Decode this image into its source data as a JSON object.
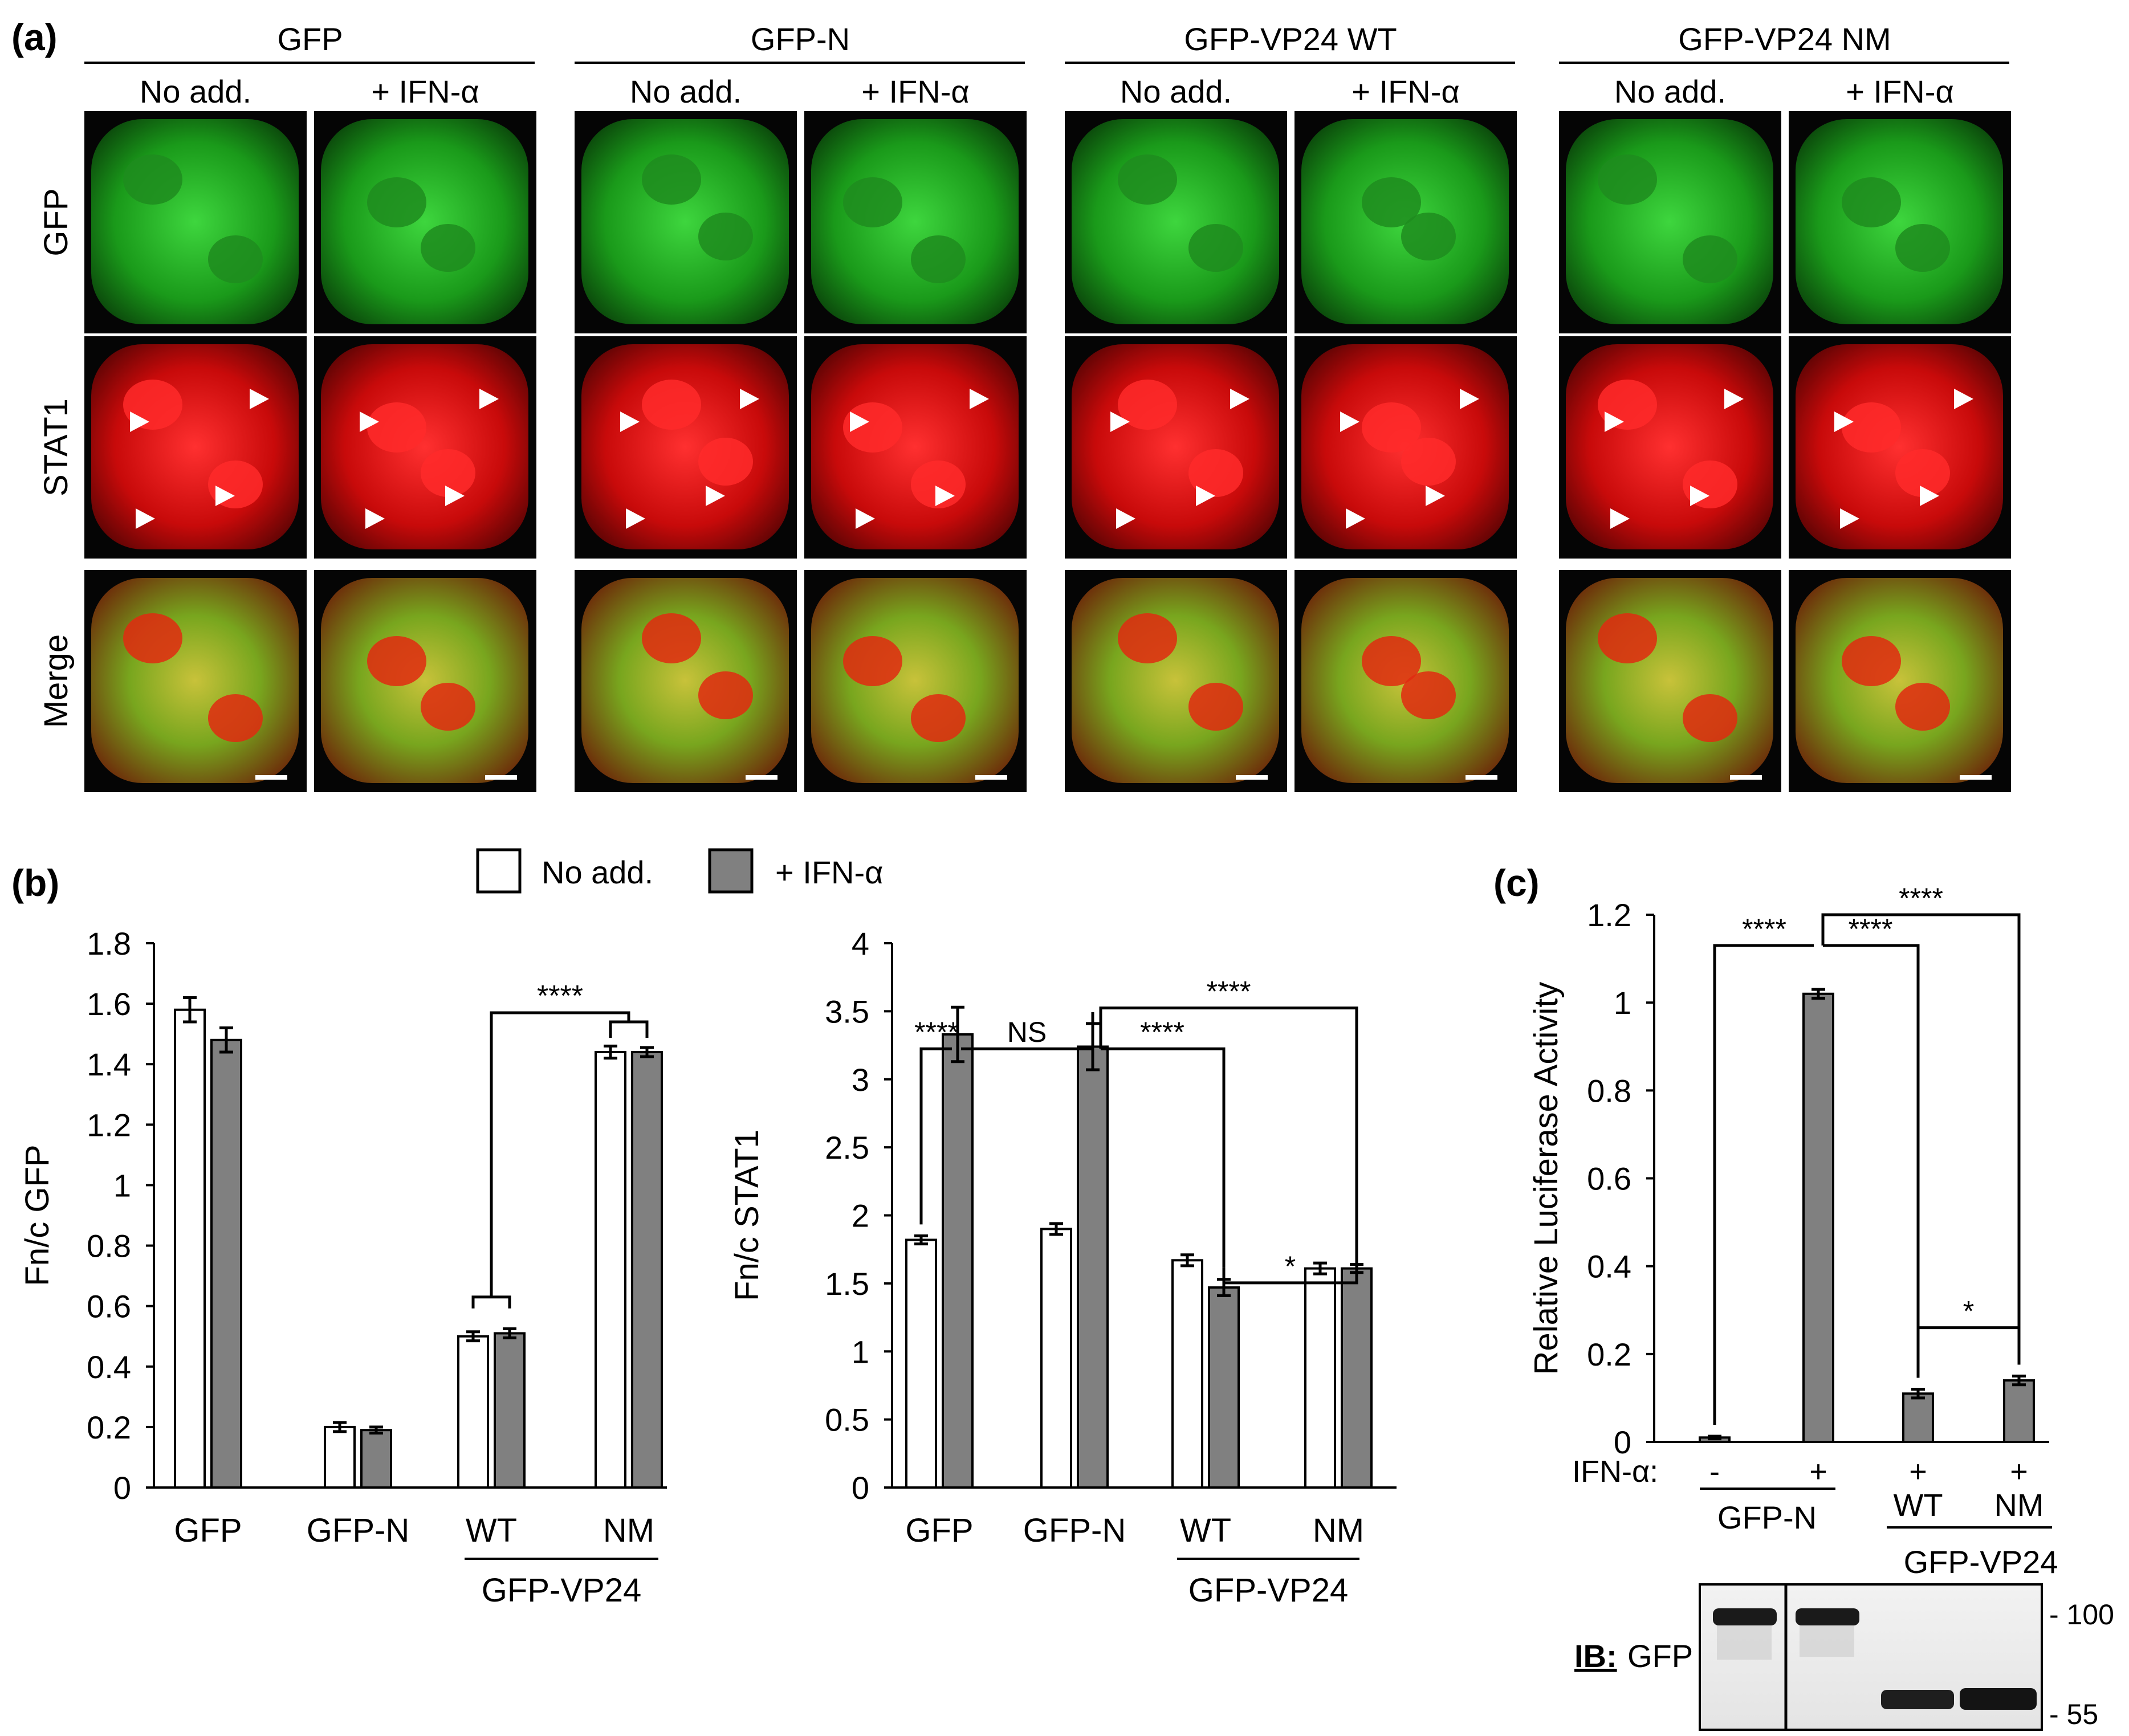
{
  "panel_a": {
    "label": "(a)",
    "groups": [
      {
        "name": "GFP",
        "conditions": [
          "No add.",
          "+ IFN-α"
        ]
      },
      {
        "name": "GFP-N",
        "conditions": [
          "No add.",
          "+ IFN-α"
        ]
      },
      {
        "name": "GFP-VP24 WT",
        "conditions": [
          "No add.",
          "+ IFN-α"
        ]
      },
      {
        "name": "GFP-VP24 NM",
        "conditions": [
          "No add.",
          "+ IFN-α"
        ]
      }
    ],
    "rows": [
      {
        "name": "GFP",
        "color": "#1fb41f"
      },
      {
        "name": "STAT1",
        "color": "#e01010"
      },
      {
        "name": "Merge",
        "color": "#9ab31a"
      }
    ]
  },
  "panel_b": {
    "label": "(b)",
    "legend": {
      "no_add": "No add.",
      "ifn": "+ IFN-α"
    },
    "colors": {
      "no_add": "#ffffff",
      "ifn": "#808080"
    }
  },
  "panel_c": {
    "label": "(c)",
    "ifn_row_label": "IFN-α:",
    "ifn_signs": [
      "-",
      "+",
      "+",
      "+"
    ],
    "group_label_gfpn": "GFP-N",
    "group_label_vp24": "GFP-VP24",
    "sub_labels": [
      "WT",
      "NM"
    ],
    "blot": {
      "label_prefix": "IB:",
      "label_target": "GFP",
      "markers": [
        "- 100",
        "- 55"
      ]
    }
  },
  "chart_data": [
    {
      "type": "bar",
      "id": "fnc-gfp",
      "ylabel": "Fn/c GFP",
      "ylim": [
        0,
        1.8
      ],
      "yticks": [
        "0",
        "0.2",
        "0.4",
        "0.6",
        "0.8",
        "1",
        "1.2",
        "1.4",
        "1.6",
        "1.8"
      ],
      "categories": [
        "GFP",
        "GFP-N",
        "WT",
        "NM"
      ],
      "group_label": "GFP-VP24",
      "series": [
        {
          "name": "No add.",
          "values": [
            1.58,
            0.2,
            0.5,
            1.44
          ],
          "errors": [
            0.04,
            0.015,
            0.015,
            0.02
          ]
        },
        {
          "name": "+ IFN-α",
          "values": [
            1.48,
            0.19,
            0.51,
            1.44
          ],
          "errors": [
            0.04,
            0.01,
            0.015,
            0.015
          ]
        }
      ],
      "annotations": [
        "****"
      ]
    },
    {
      "type": "bar",
      "id": "fnc-stat1",
      "ylabel": "Fn/c STAT1",
      "ylim": [
        0,
        4
      ],
      "yticks": [
        "0",
        "0.5",
        "1",
        "1.5",
        "2",
        "2.5",
        "3",
        "3.5",
        "4"
      ],
      "categories": [
        "GFP",
        "GFP-N",
        "WT",
        "NM"
      ],
      "group_label": "GFP-VP24",
      "series": [
        {
          "name": "No add.",
          "values": [
            1.82,
            1.9,
            1.67,
            1.61
          ],
          "errors": [
            0.03,
            0.04,
            0.04,
            0.04
          ]
        },
        {
          "name": "+ IFN-α",
          "values": [
            3.33,
            3.24,
            1.47,
            1.61
          ],
          "errors": [
            0.2,
            0.17,
            0.06,
            0.03
          ]
        }
      ],
      "annotations": [
        "****",
        "NS",
        "****",
        "****",
        "*"
      ]
    },
    {
      "type": "bar",
      "id": "luciferase",
      "ylabel": "Relative Luciferase Activity",
      "ylim": [
        0,
        1.2
      ],
      "yticks": [
        "0",
        "0.2",
        "0.4",
        "0.6",
        "0.8",
        "1",
        "1.2"
      ],
      "series": [
        {
          "name": "+ IFN-α",
          "values": [
            0.01,
            1.02,
            0.11,
            0.14
          ],
          "errors": [
            0.003,
            0.01,
            0.01,
            0.01
          ]
        }
      ],
      "annotations": [
        "****",
        "****",
        "****",
        "*"
      ]
    }
  ]
}
